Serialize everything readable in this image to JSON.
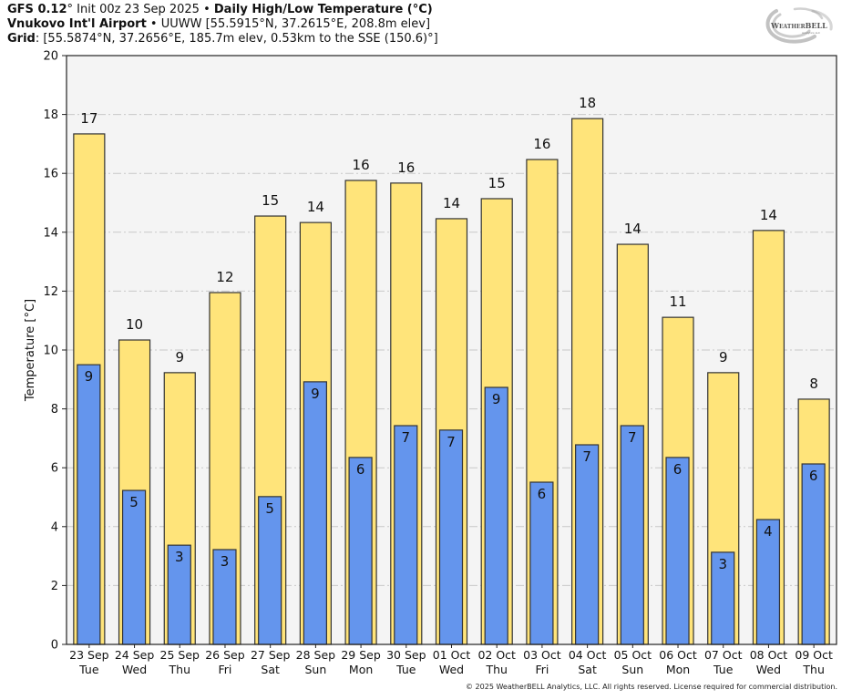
{
  "header": {
    "model": "GFS 0.12",
    "model_deg": "°",
    "init": " Init 00z 23 Sep 2025 • ",
    "product": "Daily High/Low Temperature (°C)",
    "station_name": "Vnukovo Int'l Airport",
    "station_sep": " • ",
    "station_info": "UUWW [55.5915°N, 37.2615°E, 208.8m elev]",
    "grid_label": "Grid",
    "grid_info": ": [55.5874°N, 37.2656°E, 185.7m elev, 0.53km to the SSE (150.6)°]"
  },
  "logo": {
    "name": "WeatherBELL",
    "sub": "Analytics LLC"
  },
  "copyright": "© 2025 WeatherBELL Analytics, LLC. All rights reserved. License required for commercial distribution.",
  "colors": {
    "high_bar": "#FFE47A",
    "low_bar": "#6495ED",
    "plot_bg": "#F4F4F4",
    "grid": "#C8C8C8",
    "bar_edge": "#333333"
  },
  "chart_data": {
    "type": "bar",
    "title": "Daily High/Low Temperature (°C)",
    "xlabel": "",
    "ylabel": "Temperature [°C]",
    "ylim": [
      0,
      20
    ],
    "yticks": [
      0,
      2,
      4,
      6,
      8,
      10,
      12,
      14,
      16,
      18,
      20
    ],
    "grid": true,
    "categories": [
      "23 Sep",
      "24 Sep",
      "25 Sep",
      "26 Sep",
      "27 Sep",
      "28 Sep",
      "29 Sep",
      "30 Sep",
      "01 Oct",
      "02 Oct",
      "03 Oct",
      "04 Oct",
      "05 Oct",
      "06 Oct",
      "07 Oct",
      "08 Oct",
      "09 Oct"
    ],
    "weekdays": [
      "Tue",
      "Wed",
      "Thu",
      "Fri",
      "Sat",
      "Sun",
      "Mon",
      "Tue",
      "Wed",
      "Thu",
      "Fri",
      "Sat",
      "Sun",
      "Mon",
      "Tue",
      "Wed",
      "Thu"
    ],
    "series": [
      {
        "name": "High",
        "color": "#FFE47A",
        "values": [
          17.34,
          10.34,
          9.23,
          11.95,
          14.55,
          14.33,
          15.76,
          15.67,
          14.46,
          15.14,
          16.47,
          17.86,
          13.59,
          11.11,
          9.23,
          14.06,
          8.33
        ],
        "labels": [
          "17",
          "10",
          "9",
          "12",
          "15",
          "14",
          "16",
          "16",
          "14",
          "15",
          "16",
          "18",
          "14",
          "11",
          "9",
          "14",
          "8"
        ]
      },
      {
        "name": "Low",
        "color": "#6495ED",
        "values": [
          9.5,
          5.23,
          3.37,
          3.22,
          5.02,
          8.92,
          6.35,
          7.43,
          7.28,
          8.73,
          5.51,
          6.78,
          7.43,
          6.35,
          3.13,
          4.24,
          6.13
        ],
        "labels": [
          "9",
          "5",
          "3",
          "3",
          "5",
          "9",
          "6",
          "7",
          "7",
          "9",
          "6",
          "7",
          "7",
          "6",
          "3",
          "4",
          "6"
        ]
      }
    ]
  }
}
